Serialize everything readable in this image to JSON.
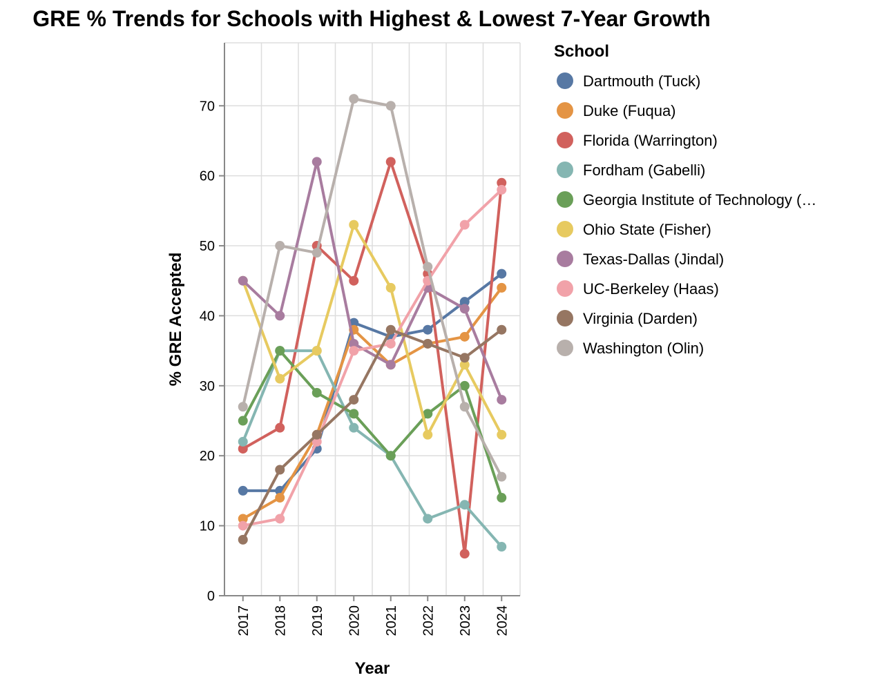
{
  "chart_data": {
    "type": "line",
    "title": "GRE % Trends for Schools with Highest & Lowest 7-Year Growth",
    "xlabel": "Year",
    "ylabel": "% GRE Accepted",
    "x": [
      "2017",
      "2018",
      "2019",
      "2020",
      "2021",
      "2022",
      "2023",
      "2024"
    ],
    "yticks": [
      "0",
      "10",
      "20",
      "30",
      "40",
      "50",
      "60",
      "70"
    ],
    "ylim": [
      0,
      79
    ],
    "grid": true,
    "legend": {
      "title": "School",
      "position": "right"
    },
    "series": [
      {
        "name": "Dartmouth (Tuck)",
        "color": "#5778a4",
        "values": [
          15,
          15,
          21,
          39,
          37,
          38,
          42,
          46
        ]
      },
      {
        "name": "Duke (Fuqua)",
        "color": "#e49444",
        "values": [
          11,
          14,
          23,
          38,
          33,
          36,
          37,
          44
        ]
      },
      {
        "name": "Florida (Warrington)",
        "color": "#d1615d",
        "values": [
          21,
          24,
          50,
          45,
          62,
          46,
          6,
          59
        ]
      },
      {
        "name": "Fordham (Gabelli)",
        "color": "#85b6b2",
        "values": [
          22,
          35,
          35,
          24,
          20,
          11,
          13,
          7
        ]
      },
      {
        "name": "Georgia Institute of Technology (…",
        "color": "#6a9f58",
        "values": [
          25,
          35,
          29,
          26,
          20,
          26,
          30,
          14
        ]
      },
      {
        "name": "Ohio State (Fisher)",
        "color": "#e7ca60",
        "values": [
          45,
          31,
          35,
          53,
          44,
          23,
          33,
          23
        ]
      },
      {
        "name": "Texas-Dallas (Jindal)",
        "color": "#a87c9f",
        "values": [
          45,
          40,
          62,
          36,
          33,
          44,
          41,
          28
        ]
      },
      {
        "name": "UC-Berkeley (Haas)",
        "color": "#f1a2a9",
        "values": [
          10,
          11,
          22,
          35,
          36,
          45,
          53,
          58
        ]
      },
      {
        "name": "Virginia (Darden)",
        "color": "#967662",
        "values": [
          8,
          18,
          23,
          28,
          38,
          36,
          34,
          38
        ]
      },
      {
        "name": "Washington (Olin)",
        "color": "#b8b0ac",
        "values": [
          27,
          50,
          49,
          71,
          70,
          47,
          27,
          17
        ]
      }
    ]
  }
}
